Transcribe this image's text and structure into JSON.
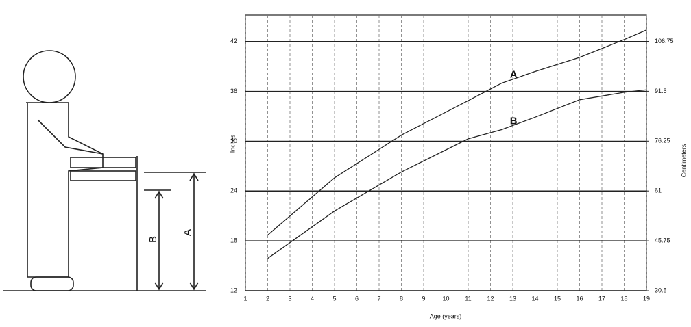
{
  "figure_labels": {
    "a": "A",
    "b": "B"
  },
  "chart_data": {
    "type": "line",
    "x_label": "Age (years)",
    "y_label": "Inches",
    "y2_label": "Centimeters",
    "xlim": [
      1,
      19
    ],
    "xticks": [
      1,
      2,
      3,
      4,
      5,
      6,
      7,
      8,
      9,
      10,
      11,
      12,
      13,
      14,
      15,
      16,
      17,
      18,
      19
    ],
    "ylim": [
      12,
      45.2
    ],
    "yticks": [
      12,
      18,
      24,
      30,
      36,
      42
    ],
    "y2lim": [
      30.5,
      114.8
    ],
    "y2ticks": [
      30.5,
      45.75,
      61,
      76.25,
      91.5,
      106.75
    ],
    "grid": true,
    "x": [
      2,
      5,
      8,
      11,
      12.5,
      14,
      16,
      18,
      19
    ],
    "series": [
      {
        "name": "A",
        "color": "#222222",
        "values": [
          18.7,
          25.6,
          30.75,
          34.9,
          37,
          38.4,
          40.1,
          42.25,
          43.4
        ]
      },
      {
        "name": "B",
        "color": "#222222",
        "values": [
          15.9,
          21.6,
          26.3,
          30.3,
          31.4,
          32.9,
          35,
          35.9,
          36.2
        ]
      }
    ]
  }
}
